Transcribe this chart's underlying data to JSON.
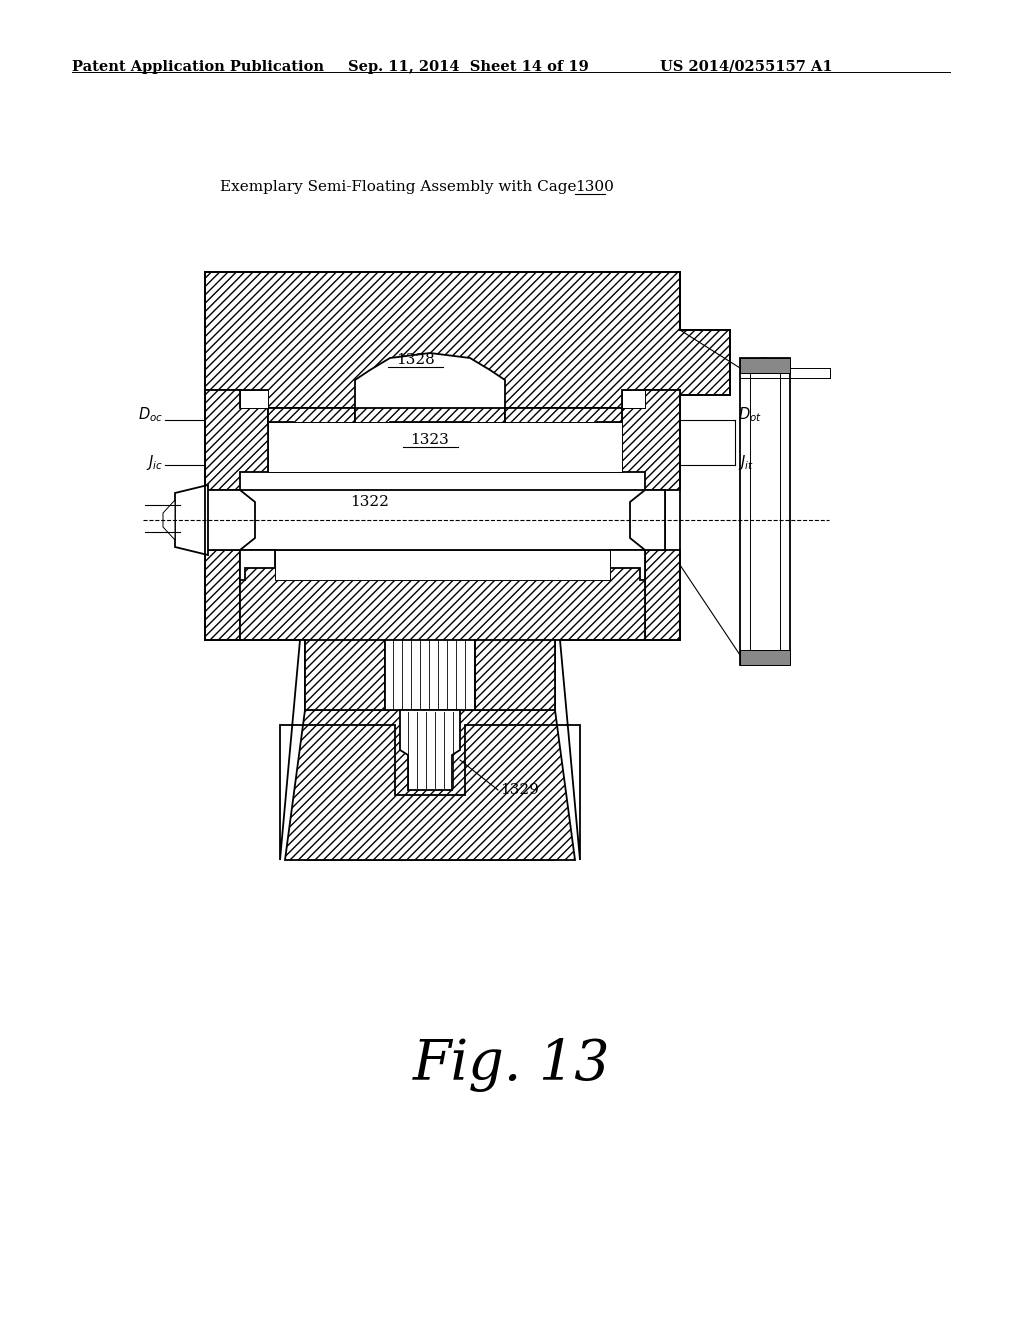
{
  "header_left": "Patent Application Publication",
  "header_mid": "Sep. 11, 2014  Sheet 14 of 19",
  "header_right": "US 2014/0255157 A1",
  "diagram_title_part1": "Exemplary Semi-Floating Assembly with Cage ",
  "diagram_title_num": "1300",
  "fig_label": "Fig. 13",
  "label_1328": "1328",
  "label_1323": "1323",
  "label_1322": "1322",
  "label_1329": "1329",
  "background_color": "#ffffff",
  "line_color": "#000000",
  "fig_label_fontsize": 40,
  "header_fontsize": 10.5,
  "label_fontsize": 11
}
